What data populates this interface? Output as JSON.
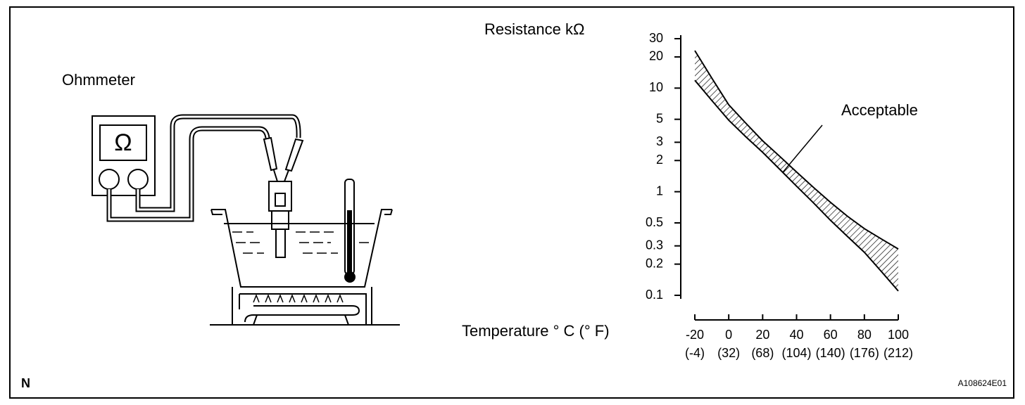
{
  "labels": {
    "ohmmeter": "Ohmmeter",
    "ohm_symbol": "Ω",
    "corner_mark": "N",
    "figure_code": "A108624E01"
  },
  "chart_data": {
    "type": "range_area",
    "title": "Resistance kΩ",
    "x_label": "Temperature ° C (° F)",
    "annotation": "Acceptable",
    "x": [
      -20,
      -10,
      0,
      10,
      20,
      30,
      40,
      50,
      60,
      70,
      80,
      90,
      100
    ],
    "upper": [
      23,
      12.5,
      6.9,
      4.6,
      3.1,
      2.2,
      1.55,
      1.1,
      0.79,
      0.58,
      0.44,
      0.35,
      0.28
    ],
    "lower": [
      11.9,
      7.6,
      4.9,
      3.4,
      2.4,
      1.65,
      1.13,
      0.78,
      0.53,
      0.37,
      0.26,
      0.17,
      0.11
    ],
    "xlim": [
      -20,
      100
    ],
    "xticks": [
      -20,
      0,
      20,
      40,
      60,
      80,
      100
    ],
    "xticks_f": [
      {
        "value": -20,
        "label": "(-4)"
      },
      {
        "value": 0,
        "label": "(32)"
      },
      {
        "value": 20,
        "label": "(68)"
      },
      {
        "value": 40,
        "label": "(104)"
      },
      {
        "value": 60,
        "label": "(140)"
      },
      {
        "value": 80,
        "label": "(176)"
      },
      {
        "value": 100,
        "label": "(212)"
      }
    ],
    "ylim": [
      0.1,
      30
    ],
    "yticks": [
      30,
      20,
      10,
      5,
      3,
      2,
      1,
      0.5,
      0.3,
      0.2,
      0.1
    ],
    "log_y": true,
    "color": "#000000"
  }
}
